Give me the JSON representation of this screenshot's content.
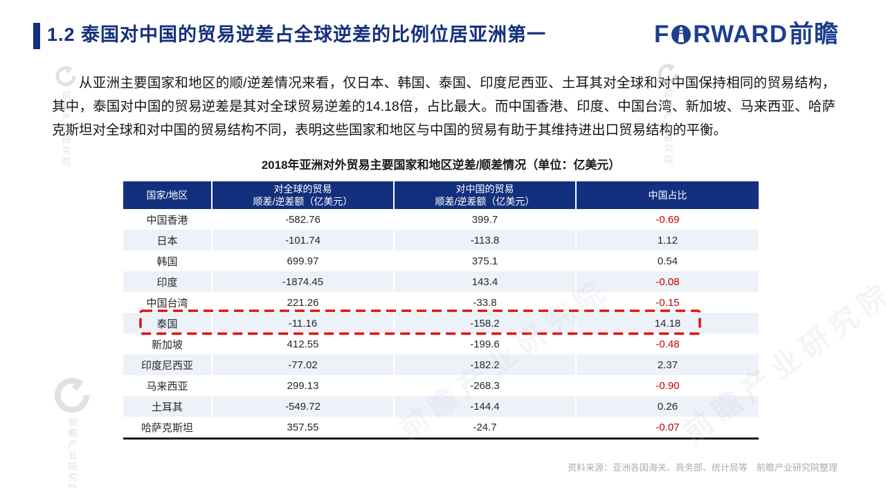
{
  "slide": {
    "title": "1.2 泰国对中国的贸易逆差占全球逆差的比例位居亚洲第一",
    "logo": {
      "part1": "F",
      "part2": "RWARD",
      "part3": "前瞻"
    },
    "paragraph": "从亚洲主要国家和地区的顺/逆差情况来看，仅日本、韩国、泰国、印度尼西亚、土耳其对全球和对中国保持相同的贸易结构，其中，泰国对中国的贸易逆差是其对全球贸易逆差的14.18倍，占比最大。而中国香港、印度、中国台湾、新加坡、马来西亚、哈萨克斯坦对全球和对中国的贸易结构不同，表明这些国家和地区与中国的贸易有助于其维持进出口贸易结构的平衡。",
    "source": "资料来源：亚洲各国海关、商务部、统计局等　前瞻产业研究院整理",
    "watermark": "前瞻产业研究院"
  },
  "colors": {
    "navy": "#13307e",
    "logo_navy": "#1d3e8f",
    "row_alt": "#edf1f8",
    "negative_red": "#c00000",
    "highlight_dash_red": "#e01212",
    "source_gray": "#adadad"
  },
  "chart_data": {
    "type": "table",
    "title": "2018年亚洲对外贸易主要国家和地区逆差/顺差情况（单位：亿美元）",
    "columns": [
      {
        "line1": "国家/地区",
        "line2": ""
      },
      {
        "line1": "对全球的贸易",
        "line2": "顺差/逆差额（亿美元）"
      },
      {
        "line1": "对中国的贸易",
        "line2": "顺差/逆差额（亿美元）"
      },
      {
        "line1": "中国占比",
        "line2": ""
      }
    ],
    "rows": [
      {
        "region": "中国香港",
        "global": "-582.76",
        "china": "399.7",
        "ratio": "-0.69",
        "highlight": false
      },
      {
        "region": "日本",
        "global": "-101.74",
        "china": "-113.8",
        "ratio": "1.12",
        "highlight": false
      },
      {
        "region": "韩国",
        "global": "699.97",
        "china": "375.1",
        "ratio": "0.54",
        "highlight": false
      },
      {
        "region": "印度",
        "global": "-1874.45",
        "china": "143.4",
        "ratio": "-0.08",
        "highlight": false
      },
      {
        "region": "中国台湾",
        "global": "221.26",
        "china": "-33.8",
        "ratio": "-0.15",
        "highlight": false
      },
      {
        "region": "泰国",
        "global": "-11.16",
        "china": "-158.2",
        "ratio": "14.18",
        "highlight": true
      },
      {
        "region": "新加坡",
        "global": "412.55",
        "china": "-199.6",
        "ratio": "-0.48",
        "highlight": false
      },
      {
        "region": "印度尼西亚",
        "global": "-77.02",
        "china": "-182.2",
        "ratio": "2.37",
        "highlight": false
      },
      {
        "region": "马来西亚",
        "global": "299.13",
        "china": "-268.3",
        "ratio": "-0.90",
        "highlight": false
      },
      {
        "region": "土耳其",
        "global": "-549.72",
        "china": "-144.4",
        "ratio": "0.26",
        "highlight": false
      },
      {
        "region": "哈萨克斯坦",
        "global": "357.55",
        "china": "-24.7",
        "ratio": "-0.07",
        "highlight": false
      }
    ]
  }
}
